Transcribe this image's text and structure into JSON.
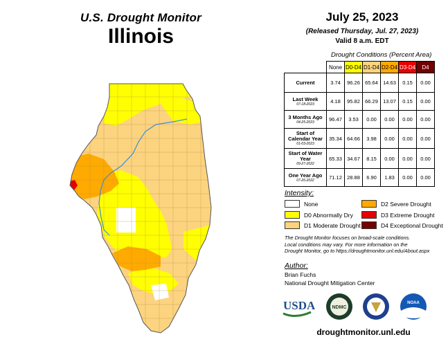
{
  "header": {
    "usdm_title": "U.S. Drought Monitor",
    "state": "Illinois",
    "date": "July 25, 2023",
    "released": "(Released Thursday, Jul. 27, 2023)",
    "valid": "Valid 8 a.m. EDT"
  },
  "table": {
    "caption": "Drought Conditions (Percent Area)",
    "columns": [
      {
        "label": "None",
        "color": "#ffffff"
      },
      {
        "label": "D0-D4",
        "color": "#ffff00"
      },
      {
        "label": "D1-D4",
        "color": "#fcd37f"
      },
      {
        "label": "D2-D4",
        "color": "#ffaa00"
      },
      {
        "label": "D3-D4",
        "color": "#e60000"
      },
      {
        "label": "D4",
        "color": "#730000"
      }
    ],
    "rows": [
      {
        "label": "Current",
        "sub": "",
        "values": [
          "3.74",
          "96.26",
          "65.64",
          "14.63",
          "0.15",
          "0.00"
        ]
      },
      {
        "label": "Last Week",
        "sub": "07-18-2023",
        "values": [
          "4.18",
          "95.82",
          "66.29",
          "13.07",
          "0.15",
          "0.00"
        ]
      },
      {
        "label": "3 Months Ago",
        "sub": "04-25-2023",
        "values": [
          "96.47",
          "3.53",
          "0.00",
          "0.00",
          "0.00",
          "0.00"
        ]
      },
      {
        "label": "Start of Calendar Year",
        "sub": "01-03-2023",
        "values": [
          "35.34",
          "64.66",
          "3.98",
          "0.00",
          "0.00",
          "0.00"
        ]
      },
      {
        "label": "Start of Water Year",
        "sub": "09-27-2022",
        "values": [
          "65.33",
          "34.67",
          "8.15",
          "0.00",
          "0.00",
          "0.00"
        ]
      },
      {
        "label": "One Year Ago",
        "sub": "07-26-2022",
        "values": [
          "71.12",
          "28.88",
          "6.90",
          "1.83",
          "0.00",
          "0.00"
        ]
      }
    ]
  },
  "legend": {
    "title": "Intensity:",
    "items": [
      {
        "label": "None",
        "color": "#ffffff"
      },
      {
        "label": "D0 Abnormally Dry",
        "color": "#ffff00"
      },
      {
        "label": "D1 Moderate Drought",
        "color": "#fcd37f"
      },
      {
        "label": "D2 Severe Drought",
        "color": "#ffaa00"
      },
      {
        "label": "D3 Extreme Drought",
        "color": "#e60000"
      },
      {
        "label": "D4 Exceptional Drought",
        "color": "#730000"
      }
    ]
  },
  "note": {
    "line1": "The Drought Monitor focuses on broad-scale conditions.",
    "line2": "Local conditions may vary. For more information on the",
    "line3": "Drought Monitor, go to https://droughtmonitor.unl.edu/About.aspx"
  },
  "author": {
    "title": "Author:",
    "name": "Brian Fuchs",
    "org": "National Drought Mitigation Center"
  },
  "logos": {
    "usda": "USDA",
    "ndmc": "NDMC",
    "noaa": "NOAA"
  },
  "website": "droughtmonitor.unl.edu"
}
